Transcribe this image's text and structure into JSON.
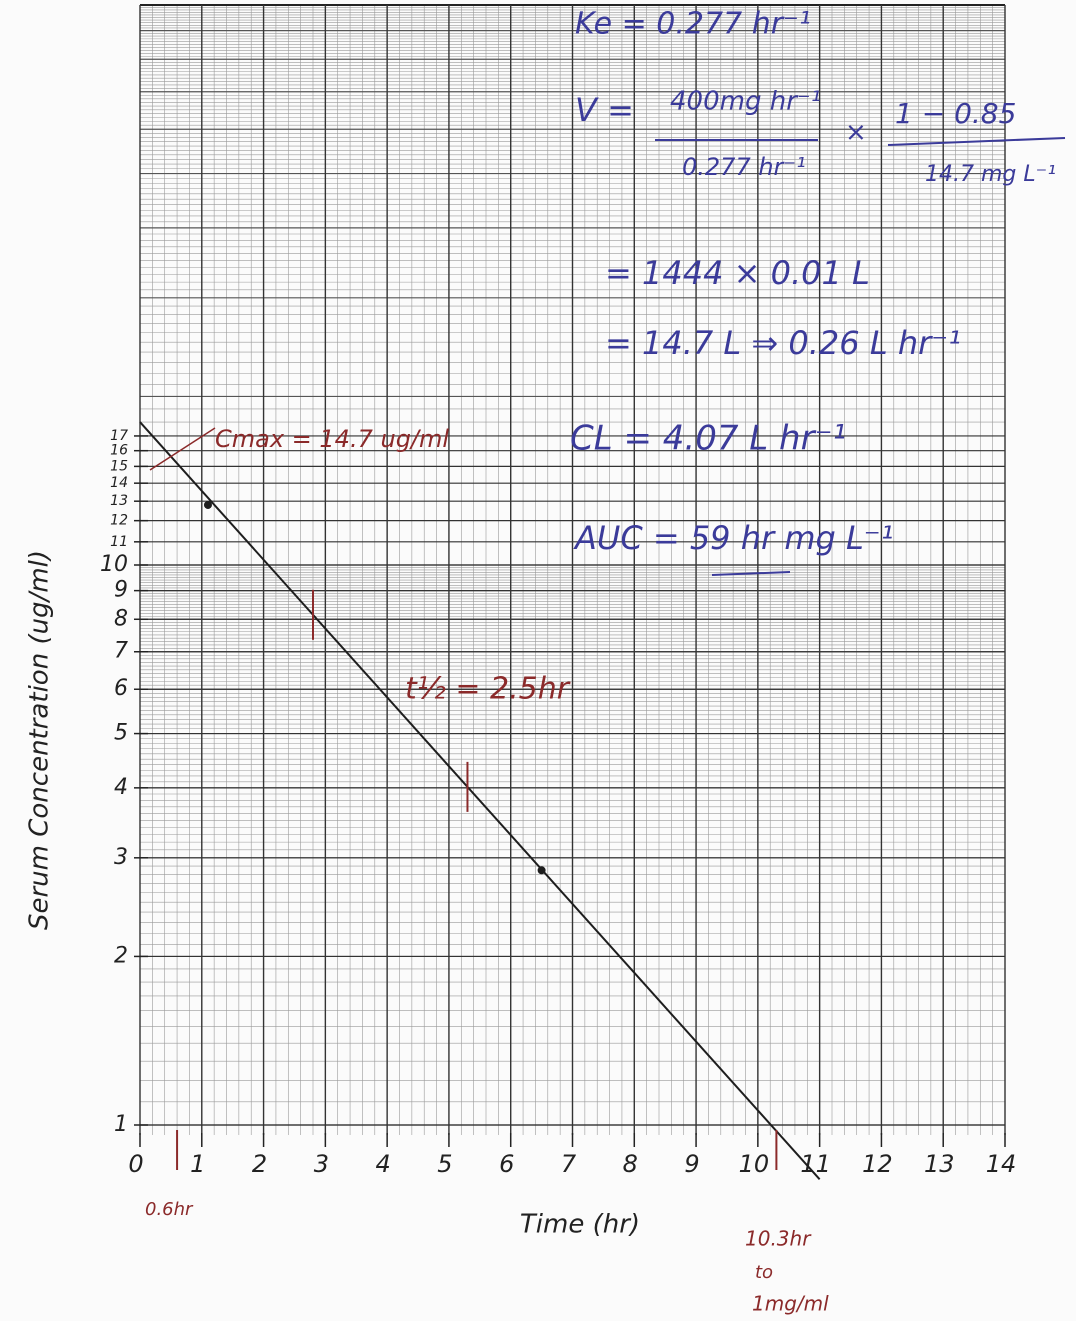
{
  "chart_data": {
    "type": "line",
    "x_label": "Time (hr)",
    "y_label": "Serum Concentration (ug/ml)",
    "log_y": true,
    "grid": true,
    "xlim": [
      0,
      14
    ],
    "ylim": [
      1,
      100
    ],
    "xticks": [
      0,
      1,
      2,
      3,
      4,
      5,
      6,
      7,
      8,
      9,
      10,
      11,
      12,
      13,
      14
    ],
    "yticks": [
      1,
      2,
      3,
      4,
      5,
      6,
      7,
      8,
      9,
      10,
      11,
      12,
      13,
      14,
      15,
      16,
      17
    ],
    "series": [
      {
        "color": "#1e1e1e",
        "x": [
          0,
          11
        ],
        "values": [
          18,
          0.8
        ]
      },
      {
        "color": "#1e1e1e",
        "x": [
          1.1,
          6.5
        ],
        "values": [
          12.8,
          2.85
        ],
        "markers": true
      }
    ],
    "axis_marks": {
      "color": "#8b2a2a",
      "x": [
        0.6,
        10.3
      ]
    },
    "line_marks": {
      "color": "#8b2a2a",
      "x": [
        2.8,
        5.3
      ]
    },
    "annotations": [
      {
        "text": "Cmax = 14.7 ug/ml",
        "color": "#8b2a2a"
      },
      {
        "text": "t½ = 2.5hr",
        "color": "#8b2a2a"
      },
      {
        "text": "0.6hr",
        "color": "#8b2a2a"
      },
      {
        "text": "10.3hr",
        "color": "#8b2a2a"
      },
      {
        "text": "to",
        "color": "#8b2a2a"
      },
      {
        "text": "1mg/ml",
        "color": "#8b2a2a"
      },
      {
        "text": "Ke = 0.277 hr⁻¹",
        "color": "#3b3b9a"
      },
      {
        "text": "V =",
        "color": "#3b3b9a"
      },
      {
        "text": "400mg hr⁻¹",
        "color": "#3b3b9a"
      },
      {
        "text": "0.277 hr⁻¹",
        "color": "#3b3b9a"
      },
      {
        "text": "×",
        "color": "#3b3b9a"
      },
      {
        "text": "1 − 0.85",
        "color": "#3b3b9a"
      },
      {
        "text": "14.7 mg L⁻¹",
        "color": "#3b3b9a"
      },
      {
        "text": "= 1444 × 0.01 L",
        "color": "#3b3b9a"
      },
      {
        "text": "= 14.7 L ⇒ 0.26 L hr⁻¹",
        "color": "#3b3b9a"
      },
      {
        "text": "CL = 4.07 L hr⁻¹",
        "color": "#3b3b9a"
      },
      {
        "text": "AUC = 59 hr mg L⁻¹",
        "color": "#3b3b9a"
      }
    ]
  }
}
